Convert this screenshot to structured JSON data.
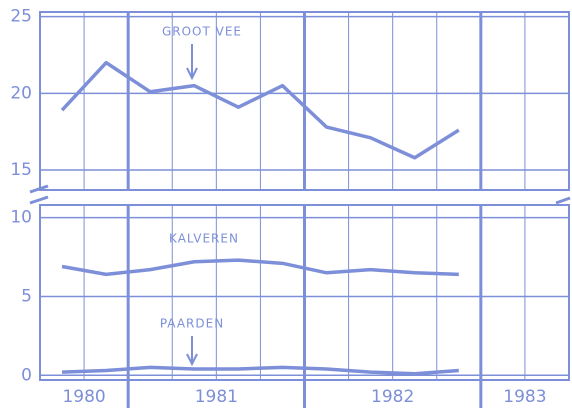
{
  "chart_data": [
    {
      "type": "line",
      "x": [
        1980.625,
        1980.875,
        1981.125,
        1981.375,
        1981.625,
        1981.875,
        1982.125,
        1982.375,
        1982.625,
        1982.875
      ],
      "xlim": [
        1980.5,
        1983.5
      ],
      "xticks": [
        1980.75,
        1981.25,
        1981.5,
        1981.75,
        1982.25,
        1982.5,
        1982.75,
        1983.25
      ],
      "major_xticks": [
        1981,
        1982,
        1983
      ],
      "ylim": [
        13.7,
        25.3
      ],
      "yticks": [
        15,
        20,
        25
      ],
      "annotations": [
        "GROOT VEE"
      ],
      "series": [
        {
          "name": "GROOT VEE",
          "color": "#7d8fd8",
          "values": [
            18.9,
            22.0,
            20.1,
            20.5,
            19.1,
            20.5,
            17.8,
            17.1,
            15.8,
            17.6
          ]
        }
      ],
      "grid": true
    },
    {
      "type": "line",
      "x": [
        1980.625,
        1980.875,
        1981.125,
        1981.375,
        1981.625,
        1981.875,
        1982.125,
        1982.375,
        1982.625,
        1982.875
      ],
      "xlim": [
        1980.5,
        1983.5
      ],
      "xticks": [
        1980.75,
        1981.25,
        1981.5,
        1981.75,
        1982.25,
        1982.5,
        1982.75,
        1983.25
      ],
      "major_xticks": [
        1981,
        1982,
        1983
      ],
      "year_labels": [
        "1980",
        "1981",
        "1982",
        "1983"
      ],
      "ylim": [
        -0.3,
        10.8
      ],
      "yticks": [
        0,
        5,
        10
      ],
      "annotations": [
        "KALVEREN",
        "PAARDEN"
      ],
      "series": [
        {
          "name": "KALVEREN",
          "color": "#7d8fd8",
          "values": [
            6.9,
            6.4,
            6.7,
            7.2,
            7.3,
            7.1,
            6.5,
            6.7,
            6.5,
            6.4
          ]
        },
        {
          "name": "PAARDEN",
          "color": "#7d8fd8",
          "values": [
            0.2,
            0.3,
            0.5,
            0.4,
            0.4,
            0.5,
            0.4,
            0.2,
            0.1,
            0.3
          ]
        }
      ],
      "grid": true
    }
  ]
}
